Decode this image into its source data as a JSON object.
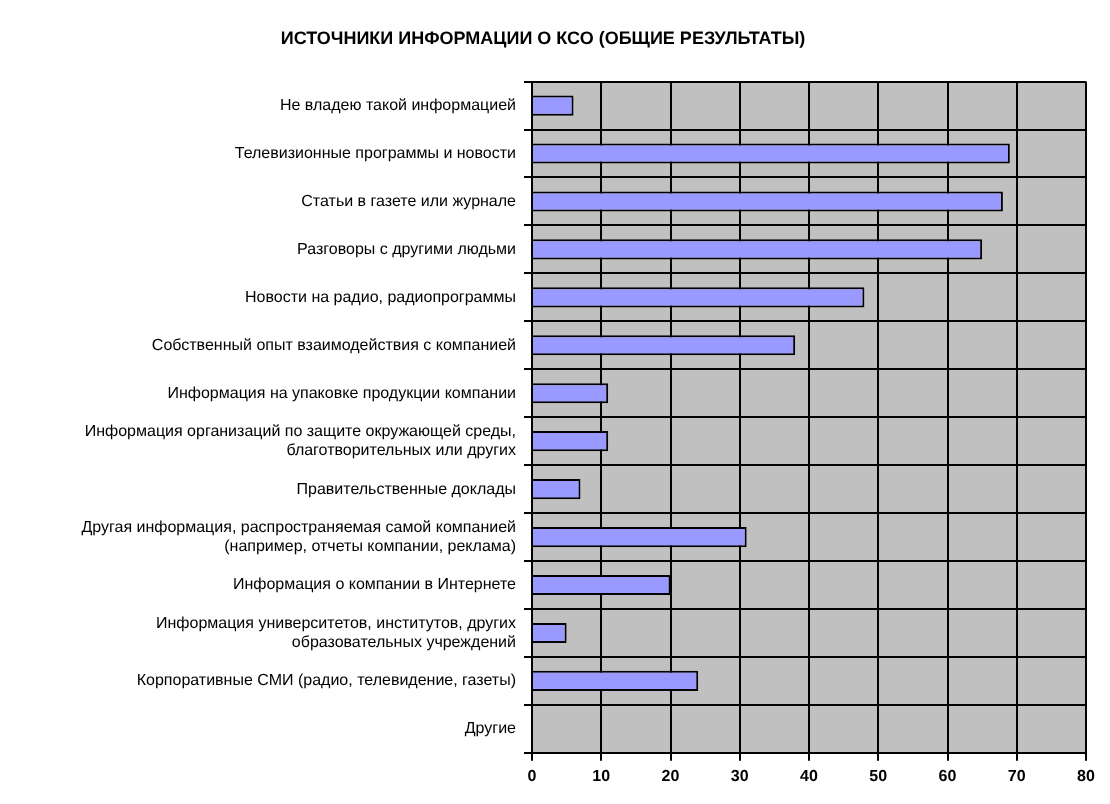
{
  "chart_data": {
    "type": "bar",
    "orientation": "horizontal",
    "title": "ИСТОЧНИКИ ИНФОРМАЦИИ О КСО (ОБЩИЕ РЕЗУЛЬТАТЫ)",
    "categories": [
      "Не владею такой информацией",
      "Телевизионные программы и новости",
      "Статьи в газете или журнале",
      "Разговоры с другими людьми",
      "Новости на радио, радиопрограммы",
      "Собственный опыт взаимодействия с компанией",
      "Информация на упаковке продукции компании",
      "Информация организаций по защите окружающей среды, благотворительных или других",
      "Правительственные доклады",
      "Другая информация, распространяемая самой компанией (например, отчеты компании, реклама)",
      "Информация о компании в Интернете",
      "Информация университетов, институтов, других образовательных учреждений",
      "Корпоративные СМИ (радио, телевидение, газеты)",
      "Другие"
    ],
    "values": [
      6,
      69,
      68,
      65,
      48,
      38,
      11,
      11,
      7,
      31,
      20,
      5,
      24,
      0
    ],
    "color": "#9999ff",
    "xlim": [
      0,
      80
    ],
    "xticks": [
      0,
      10,
      20,
      30,
      40,
      50,
      60,
      70,
      80
    ],
    "grid": true,
    "legend": false
  }
}
